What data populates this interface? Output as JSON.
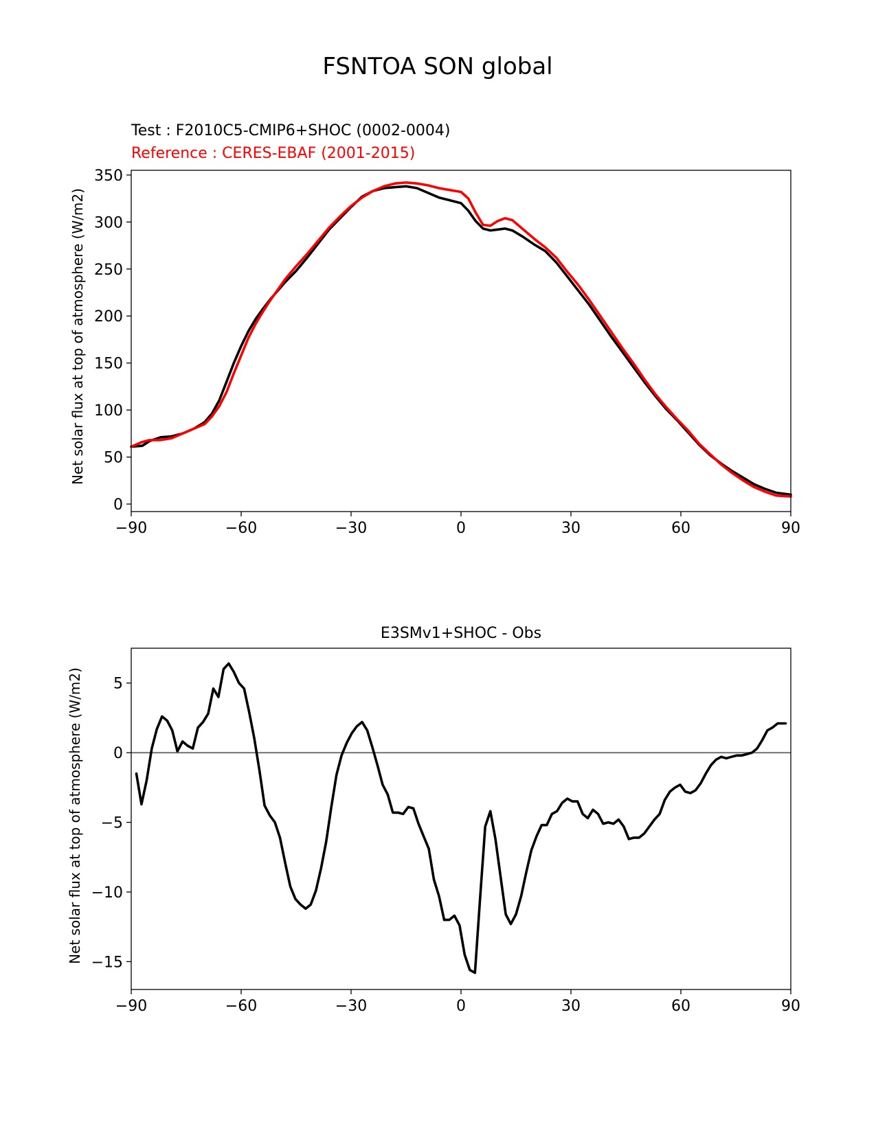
{
  "figure": {
    "title": "FSNTOA SON global"
  },
  "chart_data": [
    {
      "type": "line",
      "test_label": "Test : F2010C5-CMIP6+SHOC (0002-0004)",
      "reference_label": "Reference : CERES-EBAF (2001-2015)",
      "xlabel": "",
      "ylabel": "Net solar flux at top of atmosphere (W/m2)",
      "xlim": [
        -90,
        90
      ],
      "ylim": [
        -8,
        355
      ],
      "xticks": [
        -90,
        -60,
        -30,
        0,
        30,
        60,
        90
      ],
      "xtick_labels": [
        "−90",
        "−60",
        "−30",
        "0",
        "30",
        "60",
        "90"
      ],
      "yticks": [
        0,
        50,
        100,
        150,
        200,
        250,
        300,
        350
      ],
      "ytick_labels": [
        "0",
        "50",
        "100",
        "150",
        "200",
        "250",
        "300",
        "350"
      ],
      "grid": false,
      "series": [
        {
          "color": "#000000",
          "x": [
            -90,
            -87,
            -85,
            -82,
            -79,
            -76,
            -73,
            -70,
            -68,
            -66,
            -64,
            -62,
            -60,
            -58,
            -56,
            -54,
            -52,
            -50,
            -48,
            -45,
            -42,
            -39,
            -36,
            -33,
            -30,
            -27,
            -24,
            -21,
            -18,
            -15,
            -12,
            -9,
            -6,
            -3,
            0,
            2,
            4,
            6,
            8,
            10,
            12,
            14,
            17,
            20,
            23,
            26,
            29,
            32,
            35,
            38,
            41,
            44,
            47,
            50,
            53,
            56,
            59,
            62,
            65,
            68,
            71,
            74,
            77,
            80,
            83,
            86,
            90
          ],
          "y": [
            61,
            62,
            67,
            71,
            72,
            75,
            80,
            87,
            96,
            110,
            130,
            150,
            168,
            184,
            197,
            208,
            218,
            227,
            236,
            248,
            262,
            277,
            292,
            304,
            316,
            327,
            333,
            336,
            337,
            338,
            336,
            331,
            326,
            323,
            320,
            312,
            301,
            293,
            291,
            292,
            293,
            291,
            284,
            276,
            269,
            257,
            242,
            227,
            212,
            195,
            178,
            162,
            146,
            130,
            115,
            101,
            89,
            76,
            63,
            52,
            43,
            35,
            28,
            21,
            16,
            12,
            10
          ]
        },
        {
          "color": "#ff0000",
          "x": [
            -90,
            -87,
            -85,
            -82,
            -79,
            -76,
            -73,
            -70,
            -68,
            -66,
            -64,
            -62,
            -60,
            -58,
            -56,
            -54,
            -52,
            -50,
            -48,
            -45,
            -42,
            -39,
            -36,
            -33,
            -30,
            -27,
            -24,
            -21,
            -18,
            -15,
            -12,
            -9,
            -6,
            -3,
            0,
            2,
            4,
            6,
            8,
            10,
            12,
            14,
            17,
            20,
            23,
            26,
            29,
            32,
            35,
            38,
            41,
            44,
            47,
            50,
            53,
            56,
            59,
            62,
            65,
            68,
            71,
            74,
            77,
            80,
            83,
            86,
            90
          ],
          "y": [
            61,
            66,
            68,
            68,
            70,
            75,
            80,
            85,
            93,
            104,
            119,
            139,
            158,
            177,
            192,
            205,
            217,
            228,
            239,
            253,
            266,
            280,
            294,
            306,
            317,
            326,
            333,
            338,
            341,
            342,
            341,
            339,
            336,
            334,
            332,
            325,
            310,
            297,
            296,
            301,
            304,
            302,
            292,
            282,
            273,
            262,
            247,
            233,
            217,
            200,
            183,
            166,
            150,
            133,
            117,
            103,
            90,
            78,
            64,
            53,
            42,
            33,
            25,
            18,
            13,
            9,
            8
          ]
        }
      ]
    },
    {
      "type": "line",
      "title": "E3SMv1+SHOC - Obs",
      "xlabel": "",
      "ylabel": "Net solar flux at top of atmosphere (W/m2)",
      "xlim": [
        -90,
        90
      ],
      "ylim": [
        -17,
        7.5
      ],
      "xticks": [
        -90,
        -60,
        -30,
        0,
        30,
        60,
        90
      ],
      "xtick_labels": [
        "−90",
        "−60",
        "−30",
        "0",
        "30",
        "60",
        "90"
      ],
      "yticks": [
        -15,
        -10,
        -5,
        0,
        5
      ],
      "ytick_labels": [
        "−15",
        "−10",
        "−5",
        "0",
        "5"
      ],
      "grid": false,
      "zero_line_color": "#808080",
      "series": [
        {
          "color": "#000000",
          "x": [
            -88.6,
            -87.2,
            -85.8,
            -84.4,
            -83.0,
            -81.6,
            -80.2,
            -78.8,
            -77.4,
            -76.0,
            -74.6,
            -73.2,
            -71.8,
            -70.4,
            -69.0,
            -67.6,
            -66.2,
            -64.8,
            -63.4,
            -62.0,
            -60.6,
            -59.2,
            -57.8,
            -56.4,
            -55.0,
            -53.6,
            -52.2,
            -50.8,
            -49.4,
            -48.0,
            -46.6,
            -45.2,
            -43.8,
            -42.4,
            -41.0,
            -39.6,
            -38.2,
            -36.8,
            -35.4,
            -34.0,
            -32.6,
            -31.2,
            -29.8,
            -28.4,
            -27.0,
            -25.6,
            -24.2,
            -22.8,
            -21.4,
            -20.0,
            -18.6,
            -17.2,
            -15.8,
            -14.4,
            -13.0,
            -11.6,
            -10.2,
            -8.8,
            -7.4,
            -6.0,
            -4.6,
            -3.2,
            -1.8,
            -0.4,
            1.0,
            2.4,
            3.8,
            5.2,
            6.6,
            8.0,
            9.4,
            10.8,
            12.2,
            13.6,
            15.0,
            16.4,
            17.8,
            19.2,
            20.6,
            22.0,
            23.4,
            24.8,
            26.2,
            27.6,
            29.0,
            30.4,
            31.8,
            33.2,
            34.6,
            36.0,
            37.4,
            38.8,
            40.2,
            41.6,
            43.0,
            44.4,
            45.8,
            47.2,
            48.6,
            50.0,
            51.4,
            52.8,
            54.2,
            55.6,
            57.0,
            58.4,
            59.8,
            61.2,
            62.6,
            64.0,
            65.4,
            66.8,
            68.2,
            69.6,
            71.0,
            72.4,
            73.8,
            75.2,
            76.6,
            78.0,
            79.4,
            80.8,
            82.2,
            83.6,
            85.0,
            86.4,
            87.8,
            88.6
          ],
          "y": [
            -1.5,
            -3.7,
            -2.0,
            0.3,
            1.7,
            2.6,
            2.3,
            1.6,
            0.1,
            0.8,
            0.5,
            0.3,
            1.8,
            2.2,
            2.8,
            4.6,
            4.0,
            6.0,
            6.4,
            5.8,
            5.0,
            4.6,
            2.9,
            1.0,
            -1.3,
            -3.8,
            -4.5,
            -5.0,
            -6.1,
            -7.9,
            -9.6,
            -10.5,
            -10.9,
            -11.2,
            -10.9,
            -9.9,
            -8.3,
            -6.4,
            -3.9,
            -1.6,
            -0.2,
            0.7,
            1.4,
            1.9,
            2.2,
            1.6,
            0.4,
            -0.9,
            -2.3,
            -3.0,
            -4.3,
            -4.3,
            -4.4,
            -3.9,
            -4.0,
            -5.1,
            -6.0,
            -6.9,
            -9.1,
            -10.3,
            -12.0,
            -12.0,
            -11.7,
            -12.4,
            -14.5,
            -15.6,
            -15.8,
            -10.5,
            -5.3,
            -4.2,
            -6.2,
            -8.9,
            -11.6,
            -12.3,
            -11.6,
            -10.3,
            -8.6,
            -7.0,
            -6.0,
            -5.2,
            -5.2,
            -4.4,
            -4.2,
            -3.6,
            -3.3,
            -3.5,
            -3.5,
            -4.4,
            -4.7,
            -4.1,
            -4.4,
            -5.1,
            -5.0,
            -5.1,
            -4.8,
            -5.3,
            -6.2,
            -6.1,
            -6.1,
            -5.8,
            -5.3,
            -4.8,
            -4.4,
            -3.4,
            -2.8,
            -2.5,
            -2.3,
            -2.8,
            -2.9,
            -2.7,
            -2.2,
            -1.5,
            -0.9,
            -0.5,
            -0.3,
            -0.4,
            -0.3,
            -0.2,
            -0.2,
            -0.1,
            0.0,
            0.3,
            0.9,
            1.6,
            1.8,
            2.1,
            2.1,
            2.1
          ]
        }
      ]
    }
  ]
}
